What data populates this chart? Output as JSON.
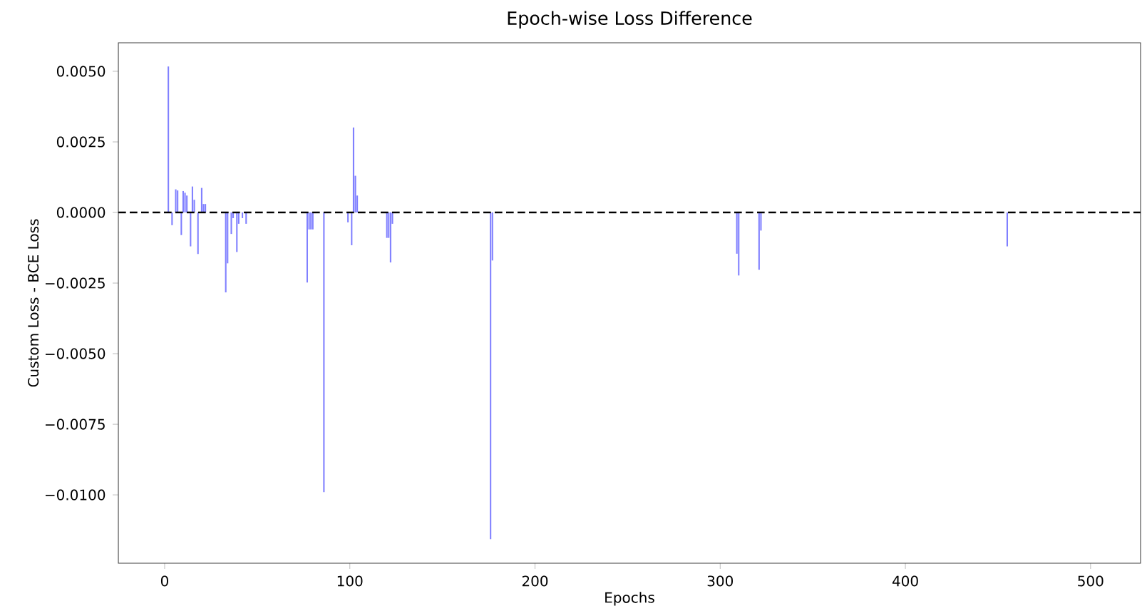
{
  "chart_data": {
    "type": "bar",
    "title": "Epoch-wise Loss Difference",
    "xlabel": "Epochs",
    "ylabel": "Custom Loss - BCE Loss",
    "x": [
      2,
      4,
      6,
      7,
      9,
      10,
      11,
      12,
      14,
      15,
      16,
      18,
      20,
      21,
      22,
      33,
      34,
      36,
      37,
      39,
      40,
      42,
      44,
      77,
      78,
      79,
      80,
      86,
      99,
      101,
      102,
      103,
      104,
      120,
      121,
      122,
      123,
      176,
      177,
      309,
      310,
      321,
      322,
      455
    ],
    "values": [
      0.00517,
      -0.00045,
      0.00082,
      0.00078,
      -0.0008,
      0.00076,
      0.0007,
      0.0006,
      -0.0012,
      0.00092,
      0.00045,
      -0.00147,
      0.00087,
      0.0003,
      0.0003,
      -0.00283,
      -0.0018,
      -0.00076,
      -0.0002,
      -0.0014,
      -0.0004,
      -0.0002,
      -0.0004,
      -0.00248,
      -0.0006,
      -0.0006,
      -0.0006,
      -0.0099,
      -0.00035,
      -0.00116,
      0.00301,
      0.0013,
      0.0006,
      -0.0009,
      -0.0009,
      -0.00177,
      -0.0004,
      -0.01157,
      -0.0017,
      -0.00146,
      -0.00223,
      -0.00203,
      -0.00064,
      -0.0012
    ],
    "color": "#8080ff",
    "xlim": [
      -25,
      527
    ],
    "ylim": [
      -0.01242,
      0.00601
    ],
    "xticks": [
      0,
      100,
      200,
      300,
      400,
      500
    ],
    "yticks": [
      {
        "value": 0.005,
        "label": "0.0050"
      },
      {
        "value": 0.0025,
        "label": "0.0025"
      },
      {
        "value": 0,
        "label": "0.0000"
      },
      {
        "value": -0.0025,
        "label": "−0.0025"
      },
      {
        "value": -0.005,
        "label": "−0.0050"
      },
      {
        "value": -0.0075,
        "label": "−0.0075"
      },
      {
        "value": -0.01,
        "label": "−0.0100"
      }
    ],
    "ref_lines": [
      {
        "axis": "y",
        "value": 0,
        "color": "#000000",
        "line_style": "dashed"
      }
    ]
  }
}
